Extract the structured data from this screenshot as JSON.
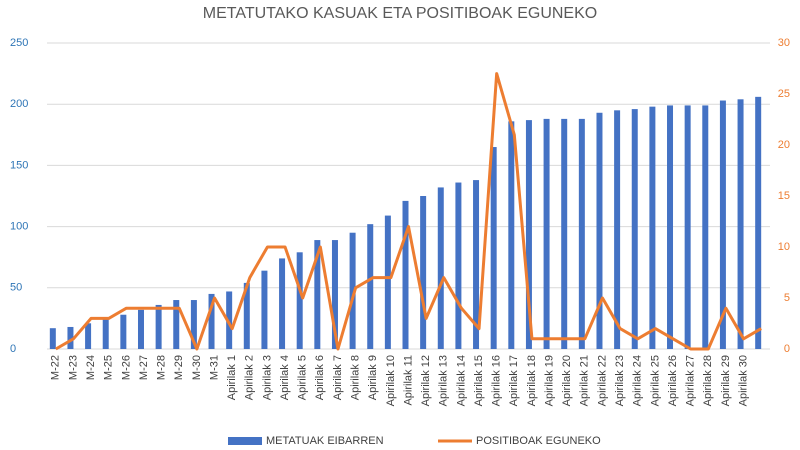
{
  "chart_data": {
    "type": "bar-line",
    "title": "METATUTAKO KASUAK ETA POSITIBOAK EGUNEKO",
    "categories": [
      "M-22",
      "M-23",
      "M-24",
      "M-25",
      "M-26",
      "M-27",
      "M-28",
      "M-29",
      "M-30",
      "M-31",
      "Apirilak 1",
      "Apirilak 2",
      "Apirilak 3",
      "Apirilak 4",
      "Apirilak 5",
      "Apirilak 6",
      "Apirilak 7",
      "Apirilak 8",
      "Apirilak 9",
      "Apirilak 10",
      "Apirilak 11",
      "Apirilak 12",
      "Apirilak 13",
      "Apirilak 14",
      "Apirilak 15",
      "Apirilak 16",
      "Apirilak 17",
      "Apirilak 18",
      "Apirilak 19",
      "Apirilak 20",
      "Apirilak 21",
      "Apirilak 22",
      "Apirilak 23",
      "Apirilak 24",
      "Apirilak 25",
      "Apirilak 26",
      "Apirilak 27",
      "Apirilak 28",
      "Apirilak 29",
      "Apirilak 30",
      null
    ],
    "series": [
      {
        "name": "METATUAK EIBARREN",
        "color": "#4472c4",
        "kind": "bar",
        "values": [
          17,
          18,
          21,
          25,
          28,
          32,
          36,
          40,
          40,
          45,
          47,
          54,
          64,
          74,
          79,
          89,
          89,
          95,
          102,
          109,
          121,
          125,
          132,
          136,
          138,
          165,
          186,
          187,
          188,
          188,
          188,
          193,
          195,
          196,
          198,
          199,
          199,
          199,
          203,
          204,
          206
        ]
      },
      {
        "name": "POSITIBOAK EGUNEKO",
        "color": "#ed7d31",
        "kind": "line",
        "axis": "y2",
        "values": [
          0,
          1,
          3,
          3,
          4,
          4,
          4,
          4,
          0,
          5,
          2,
          7,
          10,
          10,
          5,
          10,
          0,
          6,
          7,
          7,
          12,
          3,
          7,
          4,
          2,
          27,
          21,
          1,
          1,
          1,
          1,
          5,
          2,
          1,
          2,
          1,
          0,
          0,
          4,
          1,
          2
        ]
      }
    ],
    "ylim": [
      0,
      250
    ],
    "yticks": [
      0,
      50,
      100,
      150,
      200,
      250
    ],
    "y2lim": [
      0,
      30
    ],
    "y2ticks": [
      0,
      5,
      10,
      15,
      20,
      25,
      30
    ],
    "grid": true,
    "legend": "bottom"
  }
}
